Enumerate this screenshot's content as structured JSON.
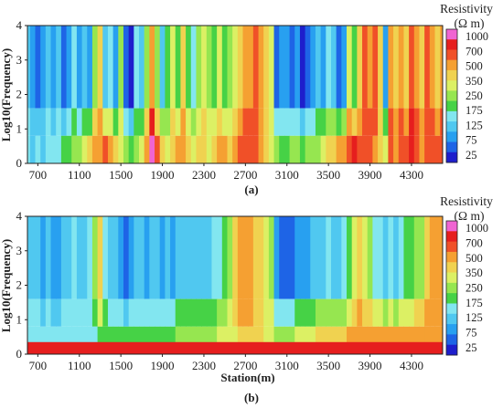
{
  "colors": [
    "#1e1ecc",
    "#1e64e6",
    "#28a0f0",
    "#50c8f0",
    "#82e6f0",
    "#46d246",
    "#96e650",
    "#dcf064",
    "#f0d250",
    "#f5a032",
    "#f05028",
    "#e61e1e",
    "#f064d2"
  ],
  "chart_data": [
    {
      "type": "heatmap",
      "panel_label": "(a)",
      "xlabel": "",
      "ylabel": "Log10(Frequency)",
      "x_ticks": [
        "700",
        "1100",
        "1500",
        "1900",
        "2300",
        "2700",
        "3100",
        "3500",
        "3900",
        "4300"
      ],
      "y_ticks": [
        "0",
        "1",
        "2",
        "3",
        "4"
      ],
      "xlim": [
        600,
        4600
      ],
      "ylim": [
        0,
        4
      ],
      "colorbar": {
        "title": "Resistivity",
        "unit": "(Ω m)",
        "levels": [
          "1000",
          "700",
          "500",
          "350",
          "250",
          "175",
          "125",
          "75",
          "25"
        ]
      },
      "columns_x": [
        600,
        650,
        700,
        750,
        800,
        850,
        900,
        950,
        1000,
        1050,
        1100,
        1150,
        1200,
        1250,
        1300,
        1350,
        1400,
        1450,
        1500,
        1550,
        1600,
        1650,
        1700,
        1750,
        1800,
        1850,
        1900,
        1950,
        2000,
        2050,
        2100,
        2150,
        2200,
        2250,
        2300,
        2350,
        2400,
        2450,
        2500,
        2550,
        2600,
        2650,
        2700,
        2750,
        2800,
        2850,
        2900,
        2950,
        3000,
        3050,
        3100,
        3150,
        3200,
        3250,
        3300,
        3350,
        3400,
        3450,
        3500,
        3550,
        3600,
        3650,
        3700,
        3750,
        3800,
        3850,
        3900,
        3950,
        4000,
        4050,
        4100,
        4150,
        4200,
        4250,
        4300,
        4350,
        4400,
        4450,
        4500,
        4550,
        4600
      ],
      "upper_level": [
        3,
        2,
        1,
        2,
        3,
        2,
        3,
        1,
        2,
        4,
        2,
        3,
        2,
        6,
        8,
        3,
        4,
        2,
        6,
        1,
        0,
        4,
        3,
        6,
        9,
        6,
        3,
        5,
        7,
        5,
        8,
        5,
        4,
        6,
        7,
        6,
        5,
        7,
        5,
        6,
        7,
        8,
        9,
        9,
        10,
        9,
        8,
        7,
        1,
        2,
        2,
        1,
        2,
        0,
        1,
        2,
        3,
        2,
        4,
        3,
        1,
        2,
        7,
        5,
        8,
        10,
        9,
        10,
        8,
        2,
        9,
        8,
        9,
        8,
        10,
        9,
        8,
        10,
        9,
        8,
        9
      ],
      "lower_level": [
        4,
        3,
        4,
        3,
        4,
        4,
        4,
        5,
        5,
        6,
        6,
        7,
        8,
        9,
        9,
        10,
        9,
        8,
        7,
        6,
        5,
        6,
        7,
        9,
        12,
        10,
        8,
        7,
        8,
        9,
        9,
        8,
        7,
        8,
        8,
        7,
        8,
        9,
        9,
        8,
        9,
        10,
        10,
        10,
        10,
        9,
        8,
        7,
        6,
        5,
        5,
        6,
        6,
        5,
        6,
        6,
        6,
        7,
        8,
        8,
        9,
        9,
        10,
        11,
        10,
        10,
        10,
        9,
        8,
        7,
        10,
        9,
        10,
        10,
        11,
        10,
        9,
        10,
        10,
        10,
        10
      ]
    },
    {
      "type": "heatmap",
      "panel_label": "(b)",
      "xlabel": "Station(m)",
      "ylabel": "Log10(Frequency)",
      "x_ticks": [
        "700",
        "1100",
        "1500",
        "1900",
        "2300",
        "2700",
        "3100",
        "3500",
        "3900",
        "4300"
      ],
      "y_ticks": [
        "0",
        "1",
        "2",
        "3",
        "4"
      ],
      "xlim": [
        600,
        4600
      ],
      "ylim": [
        0,
        4
      ],
      "colorbar": {
        "title": "Resistivity",
        "unit": "(Ω m)",
        "levels": [
          "1000",
          "700",
          "500",
          "350",
          "250",
          "175",
          "125",
          "75",
          "25"
        ]
      },
      "columns_x": [
        600,
        650,
        700,
        750,
        800,
        850,
        900,
        950,
        1000,
        1050,
        1100,
        1150,
        1200,
        1250,
        1300,
        1350,
        1400,
        1450,
        1500,
        1550,
        1600,
        1650,
        1700,
        1750,
        1800,
        1850,
        1900,
        1950,
        2000,
        2050,
        2100,
        2150,
        2200,
        2250,
        2300,
        2350,
        2400,
        2450,
        2500,
        2550,
        2600,
        2650,
        2700,
        2750,
        2800,
        2850,
        2900,
        2950,
        3000,
        3050,
        3100,
        3150,
        3200,
        3250,
        3300,
        3350,
        3400,
        3450,
        3500,
        3550,
        3600,
        3650,
        3700,
        3750,
        3800,
        3850,
        3900,
        3950,
        4000,
        4050,
        4100,
        4150,
        4200,
        4250,
        4300,
        4350,
        4400,
        4450,
        4500,
        4550,
        4600
      ],
      "upper_level": [
        3,
        3,
        3,
        2,
        3,
        2,
        2,
        3,
        3,
        4,
        3,
        3,
        4,
        6,
        8,
        4,
        3,
        3,
        2,
        1,
        2,
        3,
        3,
        2,
        3,
        3,
        2,
        3,
        2,
        3,
        3,
        3,
        3,
        3,
        3,
        3,
        4,
        4,
        5,
        6,
        8,
        9,
        9,
        9,
        8,
        8,
        7,
        6,
        2,
        1,
        1,
        1,
        2,
        2,
        2,
        3,
        3,
        3,
        4,
        3,
        3,
        4,
        5,
        7,
        8,
        7,
        6,
        4,
        4,
        3,
        4,
        3,
        4,
        5,
        5,
        6,
        6,
        8,
        9,
        9,
        9
      ],
      "lower_level": [
        4,
        4,
        4,
        4,
        4,
        4,
        4,
        4,
        4,
        4,
        4,
        4,
        4,
        4,
        5,
        5,
        5,
        5,
        5,
        5,
        5,
        5,
        5,
        5,
        5,
        5,
        5,
        5,
        5,
        6,
        6,
        6,
        6,
        6,
        6,
        6,
        6,
        7,
        7,
        7,
        7,
        8,
        8,
        8,
        8,
        8,
        7,
        7,
        6,
        6,
        6,
        6,
        7,
        7,
        7,
        7,
        8,
        8,
        8,
        8,
        8,
        8,
        9,
        9,
        9,
        9,
        9,
        9,
        9,
        9,
        9,
        9,
        9,
        9,
        9,
        9,
        9,
        9,
        9,
        9,
        9
      ]
    }
  ]
}
